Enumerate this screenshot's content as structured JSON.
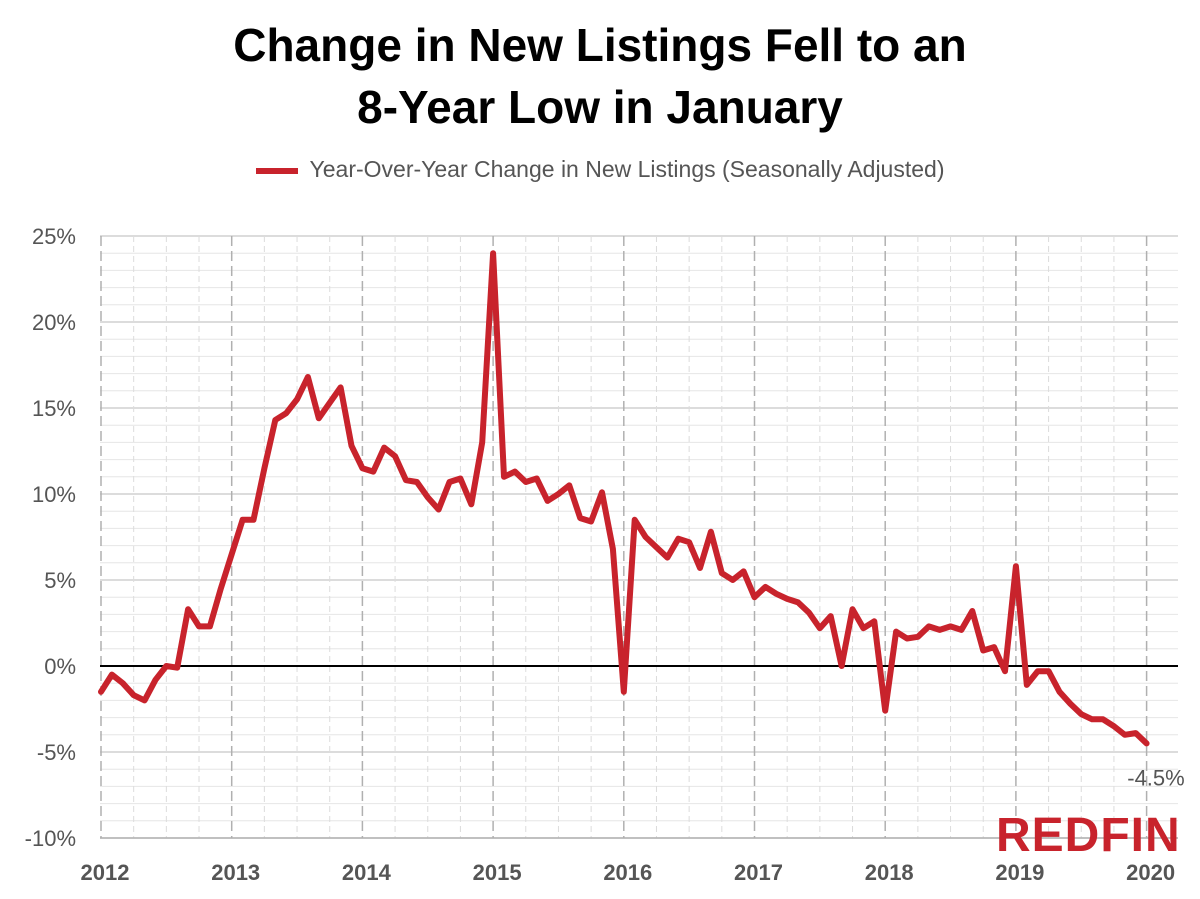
{
  "chart_data": {
    "type": "line",
    "title_lines": [
      "Change in New Listings Fell to an",
      "8-Year Low in January"
    ],
    "legend": "Year-Over-Year Change in New Listings (Seasonally Adjusted)",
    "series": [
      {
        "name": "Year-Over-Year Change in New Listings (Seasonally Adjusted)",
        "color": "#c8232c",
        "start": "2012-01",
        "values": [
          -1.5,
          -0.5,
          -1.0,
          -1.7,
          -2.0,
          -0.8,
          0.0,
          -0.1,
          3.3,
          2.3,
          2.3,
          4.5,
          6.5,
          8.5,
          8.5,
          11.5,
          14.3,
          14.7,
          15.5,
          16.8,
          14.4,
          15.3,
          16.2,
          12.8,
          11.5,
          11.3,
          12.7,
          12.2,
          10.8,
          10.7,
          9.8,
          9.1,
          10.7,
          10.9,
          9.4,
          13.0,
          24.0,
          11.0,
          11.3,
          10.7,
          10.9,
          9.6,
          10.0,
          10.5,
          8.6,
          8.4,
          10.1,
          6.8,
          -1.5,
          8.5,
          7.5,
          6.9,
          6.3,
          7.4,
          7.2,
          5.7,
          7.8,
          5.4,
          5.0,
          5.5,
          4.0,
          4.6,
          4.2,
          3.9,
          3.7,
          3.1,
          2.2,
          2.9,
          0.0,
          3.3,
          2.2,
          2.6,
          -2.6,
          2.0,
          1.6,
          1.7,
          2.3,
          2.1,
          2.3,
          2.1,
          3.2,
          0.9,
          1.1,
          -0.3,
          5.8,
          -1.1,
          -0.3,
          -0.3,
          -1.5,
          -2.2,
          -2.8,
          -3.1,
          -3.1,
          -3.5,
          -4.0,
          -3.9,
          -4.5
        ]
      }
    ],
    "x_labels": [
      "2012",
      "2013",
      "2014",
      "2015",
      "2016",
      "2017",
      "2018",
      "2019",
      "2020"
    ],
    "y_labels": [
      "25%",
      "20%",
      "15%",
      "10%",
      "5%",
      "0%",
      "-5%",
      "-10%"
    ],
    "y_values": [
      25,
      20,
      15,
      10,
      5,
      0,
      -5,
      -10
    ],
    "ylim": [
      -10,
      25
    ],
    "end_label": "-4.5%",
    "grid": true
  },
  "brand": {
    "logo_text": "REDFIN",
    "color": "#c8232c"
  }
}
